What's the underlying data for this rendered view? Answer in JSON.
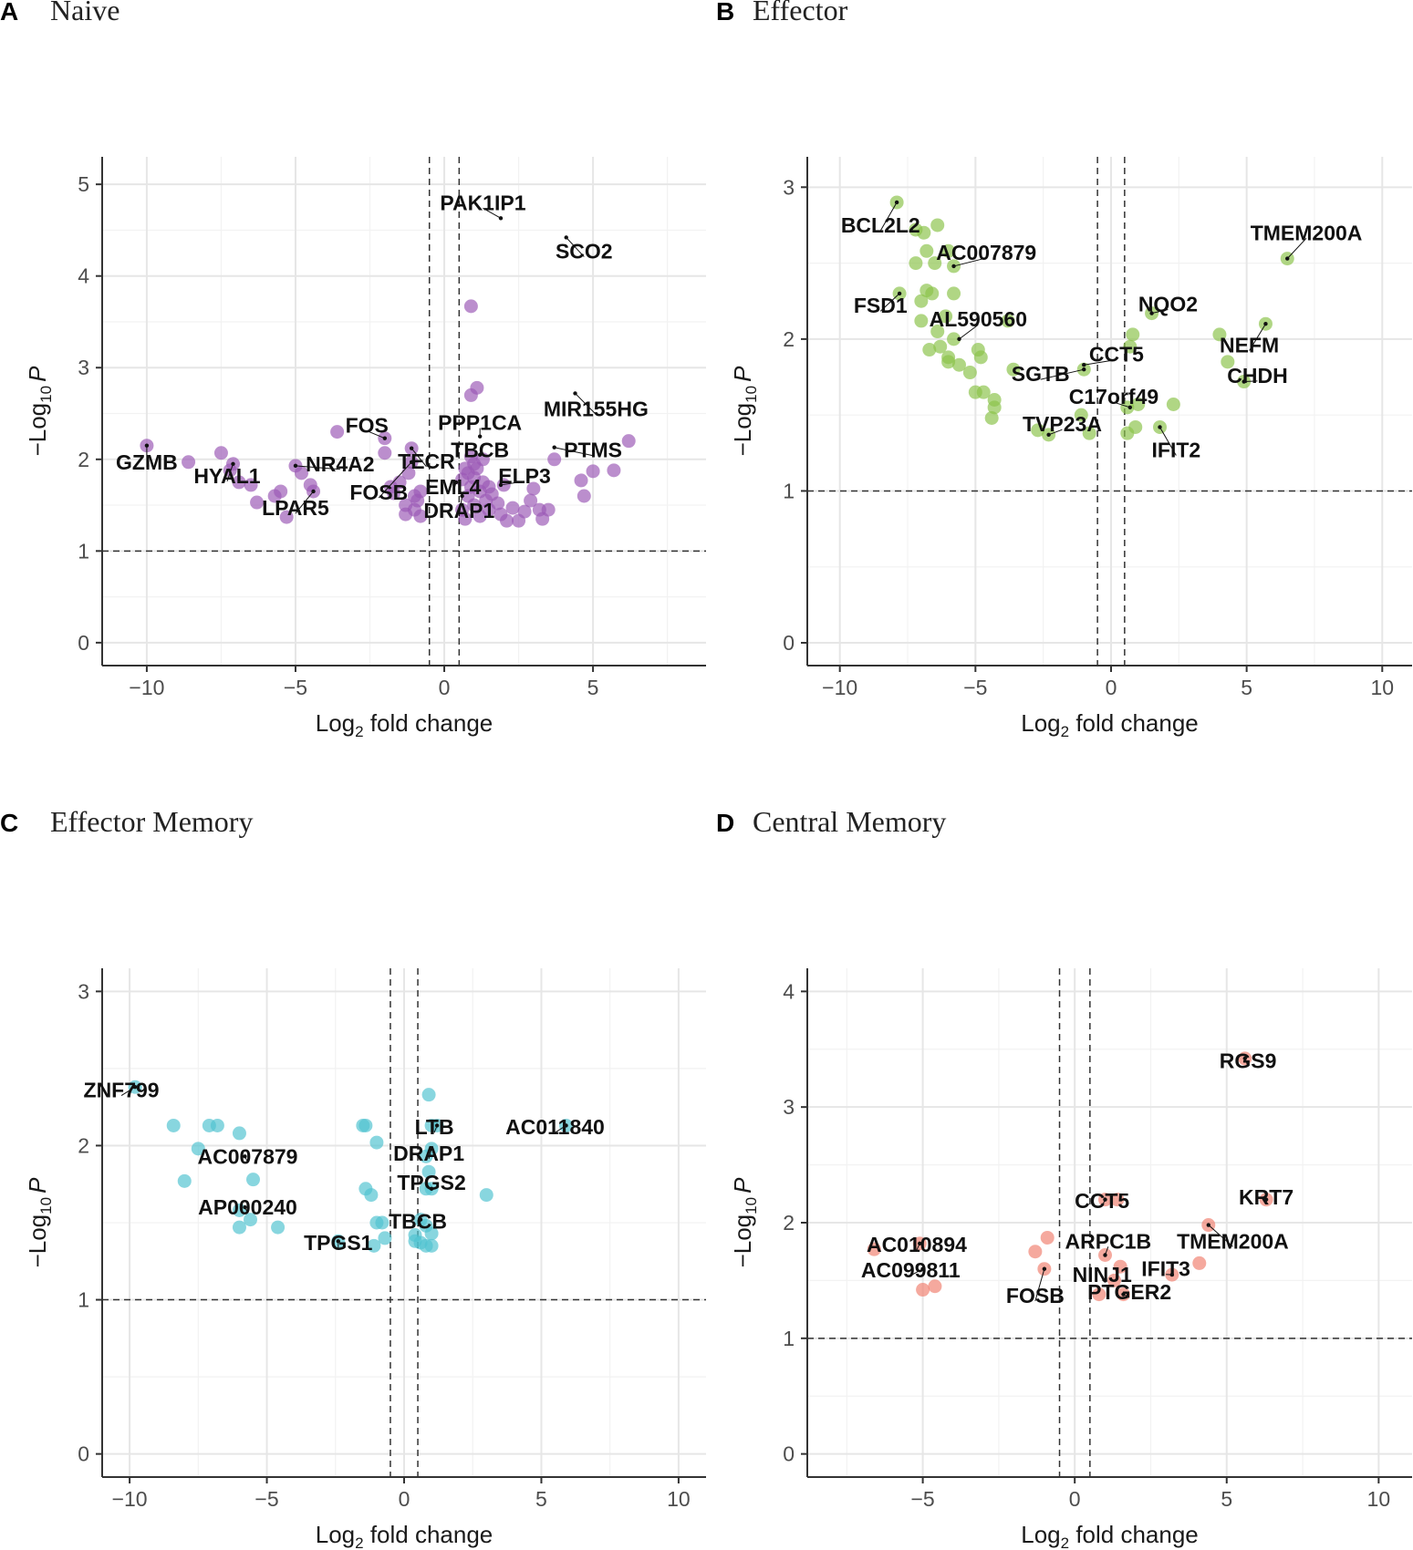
{
  "chart_data": [
    {
      "panel": "A",
      "title": "Naive",
      "type": "scatter",
      "color": "#9b59b6",
      "xlabel_main": "Log",
      "xlabel_sub": "2",
      "xlabel_rest": " fold change",
      "ylabel_pre": "−Log",
      "ylabel_sub": "10",
      "ylabel_var": "P",
      "xlim": [
        -11.5,
        8.8
      ],
      "ylim": [
        -0.25,
        5.3
      ],
      "xticks": [
        -10,
        -5,
        0,
        5
      ],
      "xtick_labels": [
        "−10",
        "−5",
        "0",
        "5"
      ],
      "yticks": [
        0,
        1,
        2,
        3,
        4,
        5
      ],
      "ytick_labels": [
        "0",
        "1",
        "2",
        "3",
        "4",
        "5"
      ],
      "cutoffs": {
        "fc": 0.5,
        "p": 1
      },
      "points": [
        [
          -10,
          2.15
        ],
        [
          -8.6,
          1.97
        ],
        [
          -7.5,
          2.07
        ],
        [
          -7.2,
          1.88
        ],
        [
          -7.1,
          1.95
        ],
        [
          -6.9,
          1.75
        ],
        [
          -6.5,
          1.72
        ],
        [
          -6.3,
          1.53
        ],
        [
          -5.7,
          1.6
        ],
        [
          -5.5,
          1.65
        ],
        [
          -5.3,
          1.37
        ],
        [
          -5.0,
          1.93
        ],
        [
          -4.8,
          1.85
        ],
        [
          -4.5,
          1.72
        ],
        [
          -4.4,
          1.65
        ],
        [
          -3.6,
          2.3
        ],
        [
          -2.0,
          2.23
        ],
        [
          -2.0,
          2.07
        ],
        [
          -1.8,
          1.7
        ],
        [
          -1.7,
          1.63
        ],
        [
          -1.5,
          1.75
        ],
        [
          -1.3,
          1.5
        ],
        [
          -1.3,
          1.4
        ],
        [
          -1.2,
          1.85
        ],
        [
          -1.1,
          1.97
        ],
        [
          -1.1,
          2.12
        ],
        [
          -1.0,
          1.6
        ],
        [
          -1.0,
          1.45
        ],
        [
          -0.9,
          1.55
        ],
        [
          -0.8,
          1.65
        ],
        [
          -0.8,
          1.38
        ],
        [
          0.6,
          1.45
        ],
        [
          0.7,
          1.35
        ],
        [
          0.8,
          1.6
        ],
        [
          0.9,
          1.7
        ],
        [
          0.9,
          2.03
        ],
        [
          1.0,
          1.5
        ],
        [
          1.0,
          1.8
        ],
        [
          1.1,
          1.9
        ],
        [
          1.2,
          1.65
        ],
        [
          1.2,
          1.38
        ],
        [
          1.3,
          1.75
        ],
        [
          1.4,
          1.55
        ],
        [
          1.5,
          1.45
        ],
        [
          1.6,
          1.62
        ],
        [
          1.8,
          1.52
        ],
        [
          1.9,
          1.4
        ],
        [
          2.0,
          1.72
        ],
        [
          2.1,
          1.33
        ],
        [
          2.3,
          1.47
        ],
        [
          2.5,
          1.33
        ],
        [
          2.7,
          1.43
        ],
        [
          2.9,
          1.55
        ],
        [
          3.0,
          1.68
        ],
        [
          3.2,
          1.45
        ],
        [
          3.3,
          1.35
        ],
        [
          3.5,
          1.45
        ],
        [
          3.7,
          2.0
        ],
        [
          4.6,
          1.77
        ],
        [
          4.7,
          1.6
        ],
        [
          5.0,
          1.87
        ],
        [
          5.7,
          1.88
        ],
        [
          6.2,
          2.2
        ],
        [
          0.9,
          2.7
        ],
        [
          1.1,
          2.78
        ],
        [
          0.9,
          3.67
        ],
        [
          0.6,
          1.78
        ],
        [
          1.0,
          1.95
        ],
        [
          0.8,
          1.85
        ],
        [
          1.5,
          1.7
        ],
        [
          0.7,
          1.9
        ],
        [
          1.3,
          2.0
        ]
      ],
      "labels": [
        {
          "text": "GZMB",
          "x": -10,
          "y": 2.15,
          "tx": -10,
          "ty": 1.97
        },
        {
          "text": "HYAL1",
          "x": -7.1,
          "y": 1.95,
          "tx": -7.3,
          "ty": 1.82
        },
        {
          "text": "LPAR5",
          "x": -4.4,
          "y": 1.65,
          "tx": -5.0,
          "ty": 1.47
        },
        {
          "text": "NR4A2",
          "x": -5.0,
          "y": 1.93,
          "tx": -3.5,
          "ty": 1.95
        },
        {
          "text": "FOS",
          "x": -2.0,
          "y": 2.23,
          "tx": -2.6,
          "ty": 2.37
        },
        {
          "text": "FOSB",
          "x": -1.1,
          "y": 1.97,
          "tx": -2.2,
          "ty": 1.64
        },
        {
          "text": "TECR",
          "x": -1.1,
          "y": 2.12,
          "tx": -0.6,
          "ty": 1.98
        },
        {
          "text": "PPP1CA",
          "x": 1.2,
          "y": 2.25,
          "tx": 1.2,
          "ty": 2.4
        },
        {
          "text": "TBCB",
          "x": 1.2,
          "y": 2.05,
          "tx": 1.2,
          "ty": 2.1
        },
        {
          "text": "EML4",
          "x": 0.4,
          "y": 1.75,
          "tx": 0.3,
          "ty": 1.7
        },
        {
          "text": "DRAP1",
          "x": 0.6,
          "y": 1.6,
          "tx": 0.5,
          "ty": 1.44
        },
        {
          "text": "ELP3",
          "x": 1.9,
          "y": 1.72,
          "tx": 2.7,
          "ty": 1.82
        },
        {
          "text": "PTMS",
          "x": 3.7,
          "y": 2.13,
          "tx": 5.0,
          "ty": 2.1
        },
        {
          "text": "MIR155HG",
          "x": 4.4,
          "y": 2.72,
          "tx": 5.1,
          "ty": 2.55
        },
        {
          "text": "PAK1IP1",
          "x": 1.9,
          "y": 4.63,
          "tx": 1.3,
          "ty": 4.8
        },
        {
          "text": "SCO2",
          "x": 4.1,
          "y": 4.42,
          "tx": 4.7,
          "ty": 4.27
        }
      ]
    },
    {
      "panel": "B",
      "title": "Effector",
      "type": "scatter",
      "color": "#8bc34a",
      "xlabel_main": "Log",
      "xlabel_sub": "2",
      "xlabel_rest": " fold change",
      "ylabel_pre": "−Log",
      "ylabel_sub": "10",
      "ylabel_var": "P",
      "xlim": [
        -11.2,
        11.1
      ],
      "ylim": [
        -0.15,
        3.2
      ],
      "xticks": [
        -10,
        -5,
        0,
        5,
        10
      ],
      "xtick_labels": [
        "−10",
        "−5",
        "0",
        "5",
        "10"
      ],
      "yticks": [
        0,
        1,
        2,
        3
      ],
      "ytick_labels": [
        "0",
        "1",
        "2",
        "3"
      ],
      "cutoffs": {
        "fc": 0.5,
        "p": 1
      },
      "points": [
        [
          -7.9,
          2.9
        ],
        [
          -7.2,
          2.72
        ],
        [
          -6.9,
          2.7
        ],
        [
          -6.4,
          2.75
        ],
        [
          -7.2,
          2.5
        ],
        [
          -6.8,
          2.58
        ],
        [
          -6.5,
          2.5
        ],
        [
          -6.0,
          2.58
        ],
        [
          -5.8,
          2.48
        ],
        [
          -7.8,
          2.3
        ],
        [
          -7.0,
          2.25
        ],
        [
          -6.8,
          2.32
        ],
        [
          -6.6,
          2.3
        ],
        [
          -5.8,
          2.3
        ],
        [
          -6.1,
          2.15
        ],
        [
          -7.0,
          2.12
        ],
        [
          -6.4,
          2.05
        ],
        [
          -5.8,
          2.0
        ],
        [
          -6.3,
          1.95
        ],
        [
          -6.7,
          1.93
        ],
        [
          -6.0,
          1.88
        ],
        [
          -5.6,
          1.83
        ],
        [
          -6.0,
          1.85
        ],
        [
          -5.2,
          1.78
        ],
        [
          -4.9,
          1.93
        ],
        [
          -4.8,
          1.88
        ],
        [
          -5.0,
          1.65
        ],
        [
          -4.7,
          1.65
        ],
        [
          -4.3,
          1.6
        ],
        [
          -4.3,
          1.55
        ],
        [
          -4.4,
          1.48
        ],
        [
          -3.8,
          2.12
        ],
        [
          -3.6,
          1.8
        ],
        [
          -2.7,
          1.4
        ],
        [
          -2.3,
          1.37
        ],
        [
          -1.1,
          1.5
        ],
        [
          -0.8,
          1.38
        ],
        [
          -1.0,
          1.8
        ],
        [
          0.6,
          1.55
        ],
        [
          0.7,
          1.95
        ],
        [
          0.8,
          2.03
        ],
        [
          0.6,
          1.38
        ],
        [
          0.9,
          1.42
        ],
        [
          1.0,
          1.57
        ],
        [
          1.5,
          2.17
        ],
        [
          2.3,
          1.57
        ],
        [
          1.8,
          1.42
        ],
        [
          4.0,
          2.03
        ],
        [
          4.3,
          1.85
        ],
        [
          4.9,
          1.72
        ],
        [
          5.7,
          2.1
        ],
        [
          6.5,
          2.53
        ]
      ],
      "labels": [
        {
          "text": "BCL2L2",
          "x": -7.9,
          "y": 2.9,
          "tx": -8.5,
          "ty": 2.75
        },
        {
          "text": "AC007879",
          "x": -5.8,
          "y": 2.48,
          "tx": -4.6,
          "ty": 2.57
        },
        {
          "text": "FSD1",
          "x": -7.8,
          "y": 2.3,
          "tx": -8.5,
          "ty": 2.22
        },
        {
          "text": "AL590560",
          "x": -5.6,
          "y": 2.0,
          "tx": -4.9,
          "ty": 2.13
        },
        {
          "text": "SGTB",
          "x": -1.0,
          "y": 1.8,
          "tx": -2.6,
          "ty": 1.77
        },
        {
          "text": "CCT5",
          "x": -1.0,
          "y": 1.83,
          "tx": 0.2,
          "ty": 1.9
        },
        {
          "text": "TVP23A",
          "x": -2.3,
          "y": 1.37,
          "tx": -1.8,
          "ty": 1.44
        },
        {
          "text": "C17orf49",
          "x": 0.7,
          "y": 1.55,
          "tx": 0.1,
          "ty": 1.62
        },
        {
          "text": "IFIT2",
          "x": 1.8,
          "y": 1.42,
          "tx": 2.4,
          "ty": 1.27
        },
        {
          "text": "NQO2",
          "x": 1.5,
          "y": 2.17,
          "tx": 2.1,
          "ty": 2.23
        },
        {
          "text": "TMEM200A",
          "x": 6.5,
          "y": 2.53,
          "tx": 7.2,
          "ty": 2.7
        },
        {
          "text": "NEFM",
          "x": 5.7,
          "y": 2.1,
          "tx": 5.1,
          "ty": 1.96
        },
        {
          "text": "CHDH",
          "x": 4.9,
          "y": 1.72,
          "tx": 5.4,
          "ty": 1.76
        }
      ]
    },
    {
      "panel": "C",
      "title": "Effector Memory",
      "type": "scatter",
      "color": "#4fc3d0",
      "xlabel_main": "Log",
      "xlabel_sub": "2",
      "xlabel_rest": " fold change",
      "ylabel_pre": "−Log",
      "ylabel_sub": "10",
      "ylabel_var": "P",
      "xlim": [
        -11.0,
        11.0
      ],
      "ylim": [
        -0.15,
        3.15
      ],
      "xticks": [
        -10,
        -5,
        0,
        5,
        10
      ],
      "xtick_labels": [
        "−10",
        "−5",
        "0",
        "5",
        "10"
      ],
      "yticks": [
        0,
        1,
        2,
        3
      ],
      "ytick_labels": [
        "0",
        "1",
        "2",
        "3"
      ],
      "cutoffs": {
        "fc": 0.5,
        "p": 1
      },
      "points": [
        [
          -9.8,
          2.38
        ],
        [
          -8.4,
          2.13
        ],
        [
          -7.5,
          1.98
        ],
        [
          -7.1,
          2.13
        ],
        [
          -6.8,
          2.13
        ],
        [
          -8.0,
          1.77
        ],
        [
          -6.0,
          2.08
        ],
        [
          -5.5,
          1.78
        ],
        [
          -6.0,
          1.58
        ],
        [
          -5.6,
          1.52
        ],
        [
          -6.0,
          1.47
        ],
        [
          -4.6,
          1.47
        ],
        [
          -1.5,
          2.13
        ],
        [
          -1.4,
          2.13
        ],
        [
          -1.0,
          2.02
        ],
        [
          -1.4,
          1.72
        ],
        [
          -1.2,
          1.68
        ],
        [
          -2.4,
          1.38
        ],
        [
          -1.0,
          1.5
        ],
        [
          -0.8,
          1.5
        ],
        [
          -0.7,
          1.4
        ],
        [
          -1.1,
          1.35
        ],
        [
          0.9,
          2.33
        ],
        [
          1.0,
          2.13
        ],
        [
          1.2,
          2.13
        ],
        [
          0.8,
          1.93
        ],
        [
          1.0,
          1.98
        ],
        [
          0.9,
          1.83
        ],
        [
          0.8,
          1.72
        ],
        [
          1.0,
          1.72
        ],
        [
          3.0,
          1.68
        ],
        [
          0.6,
          1.52
        ],
        [
          0.8,
          1.48
        ],
        [
          1.0,
          1.43
        ],
        [
          0.4,
          1.42
        ],
        [
          0.4,
          1.38
        ],
        [
          0.6,
          1.37
        ],
        [
          0.8,
          1.35
        ],
        [
          1.0,
          1.35
        ],
        [
          5.9,
          2.13
        ]
      ],
      "labels": [
        {
          "text": "ZNF799",
          "x": -9.8,
          "y": 2.38,
          "tx": -10.3,
          "ty": 2.36
        },
        {
          "text": "AC007879",
          "x": -5.8,
          "y": 1.93,
          "tx": -5.7,
          "ty": 1.93
        },
        {
          "text": "AP000240",
          "x": -5.8,
          "y": 1.6,
          "tx": -5.7,
          "ty": 1.6
        },
        {
          "text": "TPGS1",
          "x": -2.4,
          "y": 1.38,
          "tx": -2.4,
          "ty": 1.37
        },
        {
          "text": "LTB",
          "x": 1.2,
          "y": 2.13,
          "tx": 1.1,
          "ty": 2.12
        },
        {
          "text": "DRAP1",
          "x": 1.0,
          "y": 1.98,
          "tx": 0.9,
          "ty": 1.95
        },
        {
          "text": "TPGS2",
          "x": 1.0,
          "y": 1.72,
          "tx": 1.0,
          "ty": 1.76
        },
        {
          "text": "TBCB",
          "x": 0.6,
          "y": 1.52,
          "tx": 0.5,
          "ty": 1.51
        },
        {
          "text": "AC011840",
          "x": 5.9,
          "y": 2.13,
          "tx": 5.5,
          "ty": 2.12
        }
      ]
    },
    {
      "panel": "D",
      "title": "Central Memory",
      "type": "scatter",
      "color": "#f08070",
      "xlabel_main": "Log",
      "xlabel_sub": "2",
      "xlabel_rest": " fold change",
      "ylabel_pre": "−Log",
      "ylabel_sub": "10",
      "ylabel_var": "P",
      "xlim": [
        -8.8,
        11.1
      ],
      "ylim": [
        -0.2,
        4.2
      ],
      "xticks": [
        -5,
        0,
        5,
        10
      ],
      "xtick_labels": [
        "−5",
        "0",
        "5",
        "10"
      ],
      "yticks": [
        0,
        1,
        2,
        3,
        4
      ],
      "ytick_labels": [
        "0",
        "1",
        "2",
        "3",
        "4"
      ],
      "cutoffs": {
        "fc": 0.5,
        "p": 1
      },
      "points": [
        [
          -6.6,
          1.77
        ],
        [
          -5.1,
          1.82
        ],
        [
          -5.0,
          1.42
        ],
        [
          -4.6,
          1.45
        ],
        [
          -1.3,
          1.75
        ],
        [
          -0.9,
          1.87
        ],
        [
          -1.0,
          1.6
        ],
        [
          1.0,
          2.2
        ],
        [
          1.4,
          2.2
        ],
        [
          1.0,
          1.72
        ],
        [
          0.8,
          1.38
        ],
        [
          1.5,
          1.62
        ],
        [
          1.3,
          1.5
        ],
        [
          1.6,
          1.38
        ],
        [
          3.2,
          1.55
        ],
        [
          4.1,
          1.65
        ],
        [
          4.4,
          1.98
        ],
        [
          5.6,
          3.42
        ],
        [
          6.3,
          2.2
        ]
      ],
      "labels": [
        {
          "text": "RGS9",
          "x": 5.6,
          "y": 3.42,
          "tx": 5.7,
          "ty": 3.4
        },
        {
          "text": "KRT7",
          "x": 6.3,
          "y": 2.2,
          "tx": 6.3,
          "ty": 2.22
        },
        {
          "text": "CCT5",
          "x": 1.0,
          "y": 2.2,
          "tx": 0.9,
          "ty": 2.19
        },
        {
          "text": "TMEM200A",
          "x": 4.4,
          "y": 1.98,
          "tx": 5.2,
          "ty": 1.84
        },
        {
          "text": "ARPC1B",
          "x": 1.0,
          "y": 1.72,
          "tx": 1.1,
          "ty": 1.84
        },
        {
          "text": "IFIT3",
          "x": 3.2,
          "y": 1.55,
          "tx": 3.0,
          "ty": 1.6
        },
        {
          "text": "NINJ1",
          "x": 1.0,
          "y": 1.5,
          "tx": 0.9,
          "ty": 1.55
        },
        {
          "text": "PTGER2",
          "x": 1.6,
          "y": 1.38,
          "tx": 1.8,
          "ty": 1.4
        },
        {
          "text": "FOSB",
          "x": -1.0,
          "y": 1.6,
          "tx": -1.3,
          "ty": 1.37
        },
        {
          "text": "AC010894",
          "x": -5.1,
          "y": 1.82,
          "tx": -5.2,
          "ty": 1.81
        },
        {
          "text": "AC099811",
          "x": -5.0,
          "y": 1.6,
          "tx": -5.4,
          "ty": 1.59
        }
      ]
    }
  ]
}
